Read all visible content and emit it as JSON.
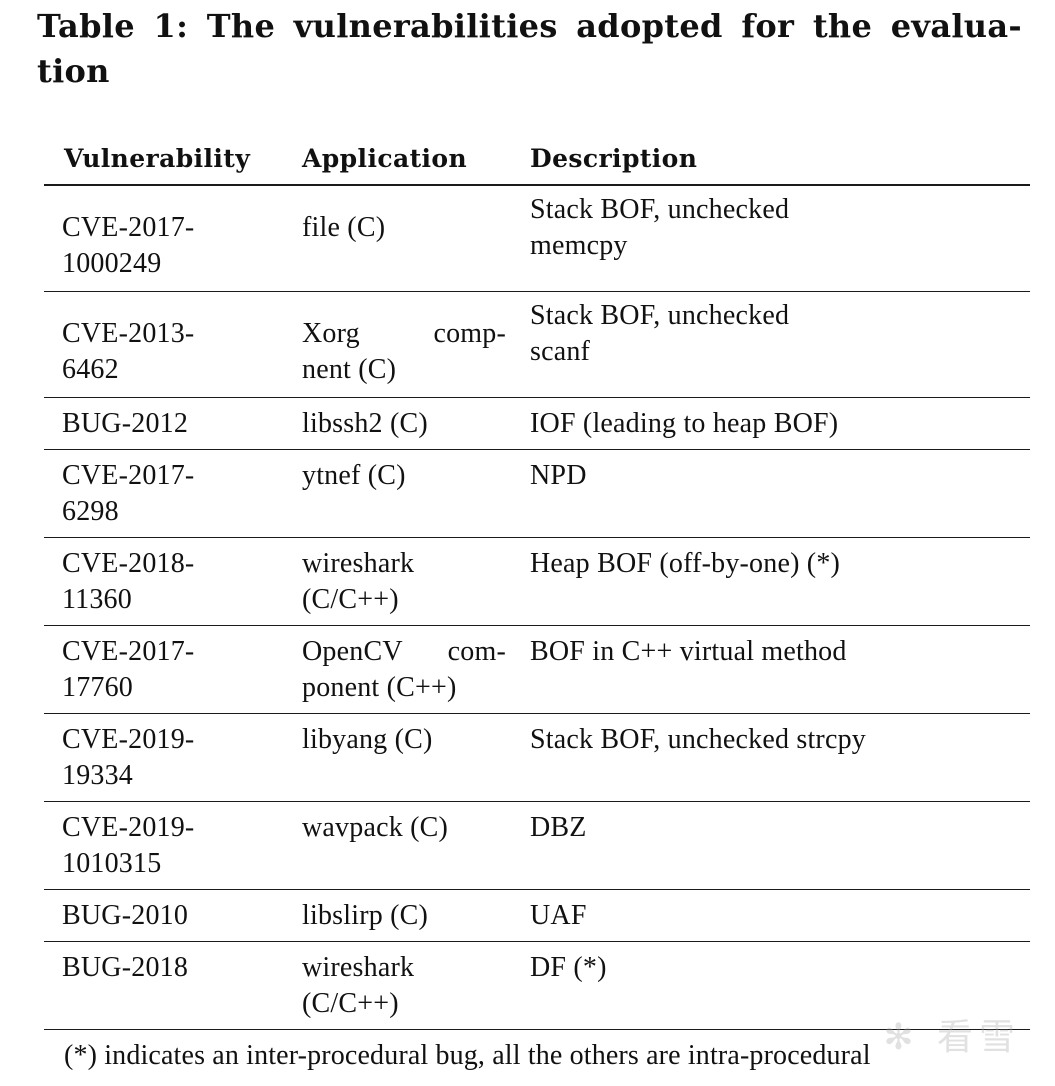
{
  "caption": {
    "line1": "Table 1: The vulnerabilities adopted for the evalua-",
    "line2": "tion"
  },
  "table": {
    "headers": [
      "Vulnerability",
      "Application",
      "Description"
    ],
    "rows": [
      {
        "vulnerability": [
          "CVE-2017-",
          "1000249"
        ],
        "application": [
          "file (C)"
        ],
        "description": [
          "Stack BOF, unchecked",
          "memcpy"
        ]
      },
      {
        "vulnerability": [
          "CVE-2013-",
          "6462"
        ],
        "application": [
          "Xorg comp-",
          "nent (C)"
        ],
        "description": [
          "Stack BOF, unchecked",
          "scanf"
        ]
      },
      {
        "vulnerability": [
          "BUG-2012"
        ],
        "application": [
          "libssh2 (C)"
        ],
        "description": [
          "IOF (leading to heap BOF)"
        ]
      },
      {
        "vulnerability": [
          "CVE-2017-",
          "6298"
        ],
        "application": [
          "ytnef (C)"
        ],
        "description": [
          "NPD"
        ]
      },
      {
        "vulnerability": [
          "CVE-2018-",
          "11360"
        ],
        "application": [
          "wireshark",
          "(C/C++)"
        ],
        "description": [
          "Heap BOF (off-by-one) (*)"
        ]
      },
      {
        "vulnerability": [
          "CVE-2017-",
          "17760"
        ],
        "application": [
          "OpenCV com-",
          "ponent (C++)"
        ],
        "description": [
          "BOF in C++ virtual method"
        ]
      },
      {
        "vulnerability": [
          "CVE-2019-",
          "19334"
        ],
        "application": [
          "libyang (C)"
        ],
        "description": [
          "Stack BOF, unchecked strcpy"
        ]
      },
      {
        "vulnerability": [
          "CVE-2019-",
          "1010315"
        ],
        "application": [
          "wavpack (C)"
        ],
        "description": [
          "DBZ"
        ]
      },
      {
        "vulnerability": [
          "BUG-2010"
        ],
        "application": [
          "libslirp (C)"
        ],
        "description": [
          "UAF"
        ]
      },
      {
        "vulnerability": [
          "BUG-2018"
        ],
        "application": [
          "wireshark",
          "(C/C++)"
        ],
        "description": [
          "DF (*)"
        ]
      }
    ]
  },
  "footnote": "(*) indicates an inter-procedural bug, all the others are intra-procedural",
  "watermark": {
    "icon": "snowflake-logo-icon",
    "text": "看雪"
  }
}
